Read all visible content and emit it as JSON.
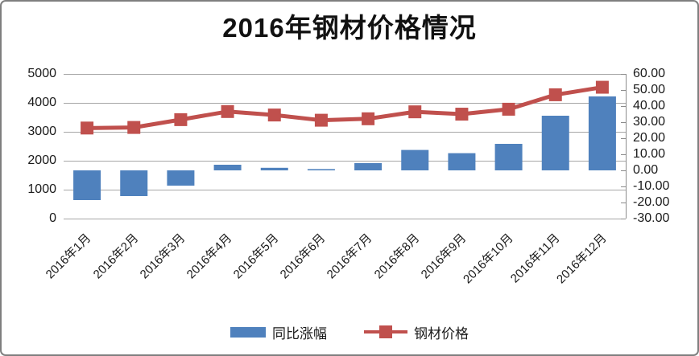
{
  "title": "2016年钢材价格情况",
  "colors": {
    "bar": "#4f81bd",
    "line": "#c0504d",
    "grid": "#a6a6a6",
    "axis_line": "#8c8c8c",
    "border": "#7f7f7f",
    "text": "#1a1a1a"
  },
  "chart_data": {
    "type": "combo-bar-line",
    "title": "2016年钢材价格情况",
    "categories": [
      "2016年1月",
      "2016年2月",
      "2016年3月",
      "2016年4月",
      "2016年5月",
      "2016年6月",
      "2016年7月",
      "2016年8月",
      "2016年9月",
      "2016年10月",
      "2016年11月",
      "2016年12月"
    ],
    "series": [
      {
        "name": "同比涨幅",
        "type": "bar",
        "axis": "right",
        "color": "#4f81bd",
        "values": [
          -18.5,
          -16,
          -9.5,
          3.5,
          1.6,
          0.8,
          4.5,
          12.7,
          10.7,
          16.5,
          34,
          46
        ]
      },
      {
        "name": "钢材价格",
        "type": "line",
        "axis": "left",
        "color": "#c0504d",
        "values": [
          3130,
          3150,
          3420,
          3700,
          3580,
          3400,
          3450,
          3690,
          3610,
          3780,
          4280,
          4540
        ]
      }
    ],
    "left_axis": {
      "min": 0,
      "max": 5000,
      "step": 1000,
      "labels": [
        "5000",
        "4000",
        "3000",
        "2000",
        "1000",
        "0"
      ]
    },
    "right_axis": {
      "min": -30,
      "max": 60,
      "step": 10,
      "labels": [
        "60.00",
        "50.00",
        "40.00",
        "30.00",
        "20.00",
        "10.00",
        "0.00",
        "-10.00",
        "-20.00",
        "-30.00"
      ]
    },
    "grid": true,
    "legend_position": "bottom",
    "legend": [
      "同比涨幅",
      "钢材价格"
    ]
  }
}
